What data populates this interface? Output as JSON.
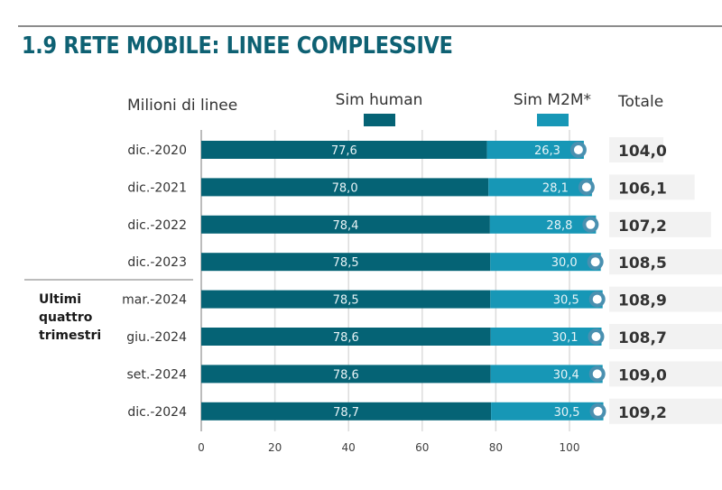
{
  "title": "1.9 RETE MOBILE: LINEE COMPLESSIVE",
  "chart_data": {
    "type": "bar",
    "stacked": true,
    "orientation": "horizontal",
    "title": "1.9 RETE MOBILE: LINEE COMPLESSIVE",
    "unit_label": "Milioni di linee",
    "categories": [
      "dic.-2020",
      "dic.-2021",
      "dic.-2022",
      "dic.-2023",
      "mar.-2024",
      "giu.-2024",
      "set.-2024",
      "dic.-2024"
    ],
    "group_label": "Ultimi quattro trimestri",
    "group_categories": [
      "mar.-2024",
      "giu.-2024",
      "set.-2024",
      "dic.-2024"
    ],
    "series": [
      {
        "name": "Sim human",
        "color": "#056375",
        "values": [
          77.6,
          78.0,
          78.4,
          78.5,
          78.5,
          78.6,
          78.6,
          78.7
        ],
        "labels": [
          "77,6",
          "78,0",
          "78,4",
          "78,5",
          "78,5",
          "78,6",
          "78,6",
          "78,7"
        ]
      },
      {
        "name": "Sim M2M*",
        "color": "#1797b6",
        "values": [
          26.3,
          28.1,
          28.8,
          30.0,
          30.5,
          30.1,
          30.4,
          30.5
        ],
        "labels": [
          "26,3",
          "28,1",
          "28,8",
          "30,0",
          "30,5",
          "30,1",
          "30,4",
          "30,5"
        ]
      }
    ],
    "totals_label": "Totale",
    "totals": [
      104.0,
      106.1,
      107.2,
      108.5,
      108.9,
      108.7,
      109.0,
      109.2
    ],
    "totals_labels": [
      "104,0",
      "106,1",
      "107,2",
      "108,5",
      "108,9",
      "108,7",
      "109,0",
      "109,2"
    ],
    "x_ticks": [
      0,
      20,
      40,
      60,
      80,
      100
    ],
    "x_tick_labels": [
      "0",
      "20",
      "40",
      "60",
      "80",
      "100"
    ],
    "xlim": [
      0,
      100
    ],
    "grid": true,
    "legend": "top",
    "marker_color": "#4a90b0",
    "total_box_color": "#f2f2f2"
  }
}
